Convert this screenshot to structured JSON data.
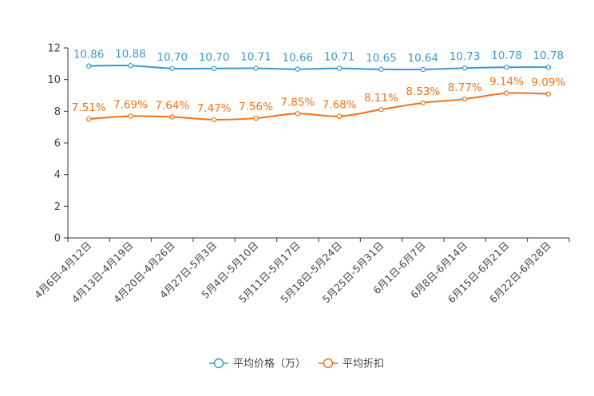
{
  "chart_data": {
    "type": "line",
    "title": "",
    "xlabel": "",
    "ylabel": "",
    "ylim": [
      0,
      12
    ],
    "yticks": [
      0,
      2,
      4,
      6,
      8,
      10,
      12
    ],
    "grid": false,
    "legend_position": "bottom-center",
    "categories": [
      "4月6日-4月12日",
      "4月13日-4月19日",
      "4月20日-4月26日",
      "4月27日-5月3日",
      "5月4日-5月10日",
      "5月11日-5月17日",
      "5月18日-5月24日",
      "5月25日-5月31日",
      "6月1日-6月7日",
      "6月8日-6月14日",
      "6月15日-6月21日",
      "6月22日-6月28日"
    ],
    "series": [
      {
        "name": "平均价格（万）",
        "color": "#3a9ac9",
        "values": [
          10.86,
          10.88,
          10.7,
          10.7,
          10.71,
          10.66,
          10.71,
          10.65,
          10.64,
          10.73,
          10.78,
          10.78
        ],
        "labels": [
          "10.86",
          "10.88",
          "10.70",
          "10.70",
          "10.71",
          "10.66",
          "10.71",
          "10.65",
          "10.64",
          "10.73",
          "10.78",
          "10.78"
        ]
      },
      {
        "name": "平均折扣",
        "color": "#f07314",
        "values": [
          7.51,
          7.69,
          7.64,
          7.47,
          7.56,
          7.85,
          7.68,
          8.11,
          8.53,
          8.77,
          9.14,
          9.09
        ],
        "labels": [
          "7.51%",
          "7.69%",
          "7.64%",
          "7.47%",
          "7.56%",
          "7.85%",
          "7.68%",
          "8.11%",
          "8.53%",
          "8.77%",
          "9.14%",
          "9.09%"
        ]
      }
    ]
  }
}
